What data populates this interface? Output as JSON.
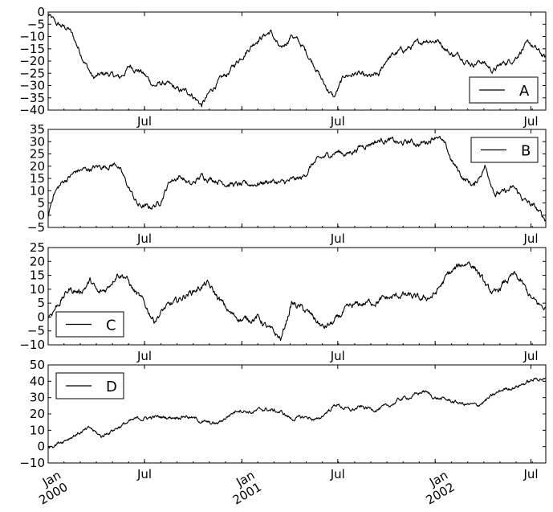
{
  "chart_data": [
    {
      "type": "line",
      "series": [
        {
          "name": "A",
          "values": []
        }
      ],
      "keypoints": [
        [
          0,
          -1
        ],
        [
          15,
          -5
        ],
        [
          40,
          -7
        ],
        [
          60,
          -16
        ],
        [
          85,
          -27
        ],
        [
          110,
          -25
        ],
        [
          135,
          -27
        ],
        [
          155,
          -22
        ],
        [
          175,
          -24
        ],
        [
          200,
          -30
        ],
        [
          220,
          -29
        ],
        [
          245,
          -32
        ],
        [
          270,
          -33
        ],
        [
          290,
          -38
        ],
        [
          315,
          -30
        ],
        [
          340,
          -25
        ],
        [
          365,
          -18
        ],
        [
          395,
          -11
        ],
        [
          420,
          -8
        ],
        [
          440,
          -16
        ],
        [
          460,
          -9
        ],
        [
          480,
          -14
        ],
        [
          505,
          -22
        ],
        [
          520,
          -29
        ],
        [
          540,
          -35
        ],
        [
          560,
          -26
        ],
        [
          585,
          -25
        ],
        [
          600,
          -27
        ],
        [
          625,
          -26
        ],
        [
          640,
          -19
        ],
        [
          665,
          -16
        ],
        [
          690,
          -14
        ],
        [
          715,
          -11
        ],
        [
          740,
          -12
        ],
        [
          760,
          -17
        ],
        [
          780,
          -18
        ],
        [
          800,
          -21
        ],
        [
          820,
          -20
        ],
        [
          840,
          -24
        ],
        [
          860,
          -21
        ],
        [
          880,
          -19
        ],
        [
          895,
          -15
        ],
        [
          910,
          -13
        ],
        [
          925,
          -16
        ],
        [
          940,
          -19
        ]
      ],
      "ylim": [
        -40,
        0
      ],
      "yticks": [
        "0",
        "−5",
        "−10",
        "−15",
        "−20",
        "−25",
        "−30",
        "−35",
        "−40"
      ],
      "legend": "lower right"
    },
    {
      "type": "line",
      "series": [
        {
          "name": "B",
          "values": []
        }
      ],
      "keypoints": [
        [
          0,
          0
        ],
        [
          10,
          9
        ],
        [
          30,
          14
        ],
        [
          55,
          18
        ],
        [
          80,
          19
        ],
        [
          105,
          20
        ],
        [
          130,
          21
        ],
        [
          150,
          12
        ],
        [
          170,
          4
        ],
        [
          190,
          3
        ],
        [
          210,
          5
        ],
        [
          230,
          14
        ],
        [
          250,
          16
        ],
        [
          270,
          12
        ],
        [
          290,
          16
        ],
        [
          310,
          15
        ],
        [
          340,
          13
        ],
        [
          365,
          12
        ],
        [
          395,
          13
        ],
        [
          420,
          14
        ],
        [
          440,
          13
        ],
        [
          460,
          14
        ],
        [
          480,
          15
        ],
        [
          500,
          21
        ],
        [
          525,
          24
        ],
        [
          545,
          26
        ],
        [
          565,
          25
        ],
        [
          590,
          28
        ],
        [
          615,
          30
        ],
        [
          640,
          31
        ],
        [
          665,
          29
        ],
        [
          685,
          30
        ],
        [
          700,
          29
        ],
        [
          715,
          30
        ],
        [
          735,
          33
        ],
        [
          750,
          28
        ],
        [
          765,
          21
        ],
        [
          785,
          15
        ],
        [
          805,
          12
        ],
        [
          825,
          20
        ],
        [
          845,
          9
        ],
        [
          860,
          9
        ],
        [
          880,
          11
        ],
        [
          900,
          6
        ],
        [
          920,
          3
        ],
        [
          940,
          -2
        ]
      ],
      "ylim": [
        -5,
        35
      ],
      "yticks": [
        "35",
        "30",
        "25",
        "20",
        "15",
        "10",
        "5",
        "0",
        "−5"
      ],
      "legend": "upper right"
    },
    {
      "type": "line",
      "series": [
        {
          "name": "C",
          "values": []
        }
      ],
      "keypoints": [
        [
          0,
          0
        ],
        [
          20,
          5
        ],
        [
          40,
          10
        ],
        [
          60,
          9
        ],
        [
          80,
          13
        ],
        [
          95,
          8
        ],
        [
          110,
          10
        ],
        [
          130,
          16
        ],
        [
          145,
          15
        ],
        [
          160,
          10
        ],
        [
          180,
          5
        ],
        [
          200,
          -1
        ],
        [
          220,
          3
        ],
        [
          240,
          5
        ],
        [
          260,
          8
        ],
        [
          280,
          10
        ],
        [
          300,
          12
        ],
        [
          320,
          7
        ],
        [
          345,
          1
        ],
        [
          370,
          -1
        ],
        [
          395,
          0
        ],
        [
          420,
          -5
        ],
        [
          440,
          -8
        ],
        [
          460,
          5
        ],
        [
          480,
          3
        ],
        [
          500,
          0
        ],
        [
          520,
          -4
        ],
        [
          540,
          -2
        ],
        [
          560,
          2
        ],
        [
          580,
          4
        ],
        [
          600,
          5
        ],
        [
          625,
          6
        ],
        [
          650,
          7
        ],
        [
          670,
          8
        ],
        [
          690,
          7
        ],
        [
          705,
          6
        ],
        [
          730,
          8
        ],
        [
          755,
          15
        ],
        [
          775,
          18
        ],
        [
          795,
          20
        ],
        [
          810,
          17
        ],
        [
          830,
          10
        ],
        [
          845,
          8
        ],
        [
          860,
          12
        ],
        [
          880,
          15
        ],
        [
          895,
          12
        ],
        [
          915,
          6
        ],
        [
          930,
          4
        ],
        [
          940,
          3
        ]
      ],
      "ylim": [
        -10,
        25
      ],
      "yticks": [
        "25",
        "20",
        "15",
        "10",
        "5",
        "0",
        "−5",
        "−10"
      ],
      "legend": "lower left"
    },
    {
      "type": "line",
      "series": [
        {
          "name": "D",
          "values": []
        }
      ],
      "keypoints": [
        [
          0,
          0
        ],
        [
          30,
          4
        ],
        [
          55,
          8
        ],
        [
          80,
          11
        ],
        [
          100,
          6
        ],
        [
          120,
          10
        ],
        [
          145,
          14
        ],
        [
          170,
          17
        ],
        [
          200,
          18
        ],
        [
          230,
          18
        ],
        [
          260,
          19
        ],
        [
          285,
          16
        ],
        [
          305,
          14
        ],
        [
          320,
          14
        ],
        [
          345,
          20
        ],
        [
          360,
          23
        ],
        [
          385,
          21
        ],
        [
          410,
          23
        ],
        [
          440,
          21
        ],
        [
          460,
          17
        ],
        [
          490,
          18
        ],
        [
          510,
          16
        ],
        [
          525,
          21
        ],
        [
          545,
          26
        ],
        [
          570,
          22
        ],
        [
          590,
          24
        ],
        [
          615,
          23
        ],
        [
          640,
          24
        ],
        [
          665,
          29
        ],
        [
          690,
          31
        ],
        [
          710,
          34
        ],
        [
          730,
          30
        ],
        [
          760,
          28
        ],
        [
          785,
          26
        ],
        [
          810,
          25
        ],
        [
          835,
          30
        ],
        [
          860,
          35
        ],
        [
          885,
          37
        ],
        [
          910,
          40
        ],
        [
          930,
          42
        ],
        [
          940,
          41
        ]
      ],
      "ylim": [
        -10,
        50
      ],
      "yticks": [
        "50",
        "40",
        "30",
        "20",
        "10",
        "0",
        "−10"
      ],
      "legend": "upper left"
    }
  ],
  "x_labels": {
    "jul": "Jul",
    "jan_2001_month": "Jan",
    "jan_2001_year": "2001",
    "jan_2002_month": "Jan",
    "jan_2002_year": "2002",
    "jan_2000_month": "Jan",
    "jan_2000_year": "2000"
  },
  "x_domain": [
    0,
    940
  ],
  "x_ticks_days": {
    "jul_2000": 182,
    "jan_2001": 366,
    "jul_2001": 547,
    "jan_2002": 731,
    "jul_2002": 912
  }
}
